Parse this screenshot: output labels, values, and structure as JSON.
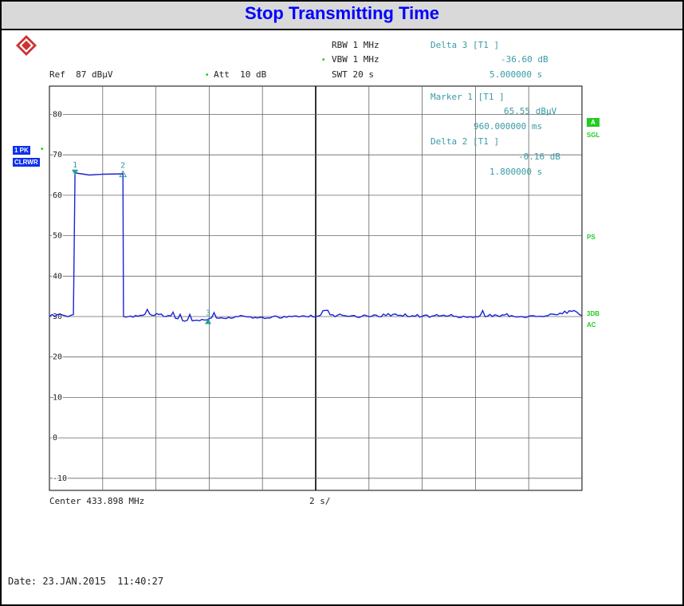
{
  "banner": {
    "title": "Stop Transmitting Time"
  },
  "logo": {
    "icon": "rohde-schwarz-logo-icon"
  },
  "header": {
    "rbw": "RBW 1 MHz",
    "vbw": "VBW 1 MHz",
    "swt": "SWT 20 s",
    "ref": "Ref  87 dBµV",
    "att": "Att  10 dB",
    "delta3": "Delta 3 [T1 ]",
    "delta3_level": "-36.60 dB",
    "delta3_time": "5.000000 s"
  },
  "markers": {
    "marker1": "Marker 1 [T1 ]",
    "marker1_level": "65.55 dBµV",
    "marker1_time": "960.000000 ms",
    "delta2": "Delta 2 [T1 ]",
    "delta2_level": "-0.16 dB",
    "delta2_time": "1.800000 s"
  },
  "left_tags": {
    "trace": "1 PK",
    "mode": "CLRWR"
  },
  "right_tags": {
    "a": "A",
    "sgl": "SGL",
    "ps": "PS",
    "3db": "3DB",
    "ac": "AC"
  },
  "footer": {
    "center": "Center 433.898 MHz",
    "span": "2 s/",
    "date": "Date: 23.JAN.2015  11:40:27"
  },
  "colors": {
    "trace": "#1a23d6",
    "marker": "#2a9d9d",
    "grid": "#666666",
    "tag_bg": "#0a2ff0",
    "tag_green": "#22cc22",
    "title": "#0000ff"
  },
  "chart_data": {
    "type": "line",
    "x_unit": "s",
    "y_unit": "dBµV",
    "xlim": [
      0,
      20
    ],
    "ylim": [
      -13,
      87
    ],
    "y_ticks": [
      80,
      70,
      60,
      50,
      40,
      30,
      20,
      10,
      0,
      -10
    ],
    "y_tick_labels": [
      "80",
      "70",
      "60",
      "50",
      "40",
      "30",
      "20",
      "10",
      "0",
      "-10"
    ],
    "series": [
      {
        "x": [
          0,
          0.3,
          0.6,
          0.9,
          0.96,
          1.0,
          1.5,
          2.0,
          2.76,
          2.78,
          3.5,
          4.2,
          5.0,
          6.0,
          7.0,
          8.0,
          9.0,
          10.0,
          11.0,
          12.0,
          13.0,
          14.0,
          15.0,
          16.0,
          17.0,
          18.0,
          19.0,
          19.7,
          20.0
        ],
        "y": [
          30,
          30.5,
          30.2,
          30.5,
          65.5,
          65.5,
          65.0,
          65.2,
          65.3,
          30,
          30.3,
          30.6,
          29.0,
          29.5,
          30.0,
          29.8,
          30.1,
          30.0,
          30.3,
          30.0,
          30.6,
          30.1,
          30.2,
          30.0,
          30.4,
          30.1,
          30.5,
          31.5,
          30.2
        ]
      }
    ],
    "markers": [
      {
        "label": "1",
        "x": 0.96,
        "y": 65.55,
        "marker_symbol": "down-triangle"
      },
      {
        "label": "2",
        "x": 2.76,
        "y": 65.39,
        "marker_symbol": "up-triangle-outline"
      },
      {
        "label": "3",
        "x": 5.96,
        "y": 28.95,
        "marker_symbol": "up-triangle"
      }
    ],
    "grid": true
  }
}
